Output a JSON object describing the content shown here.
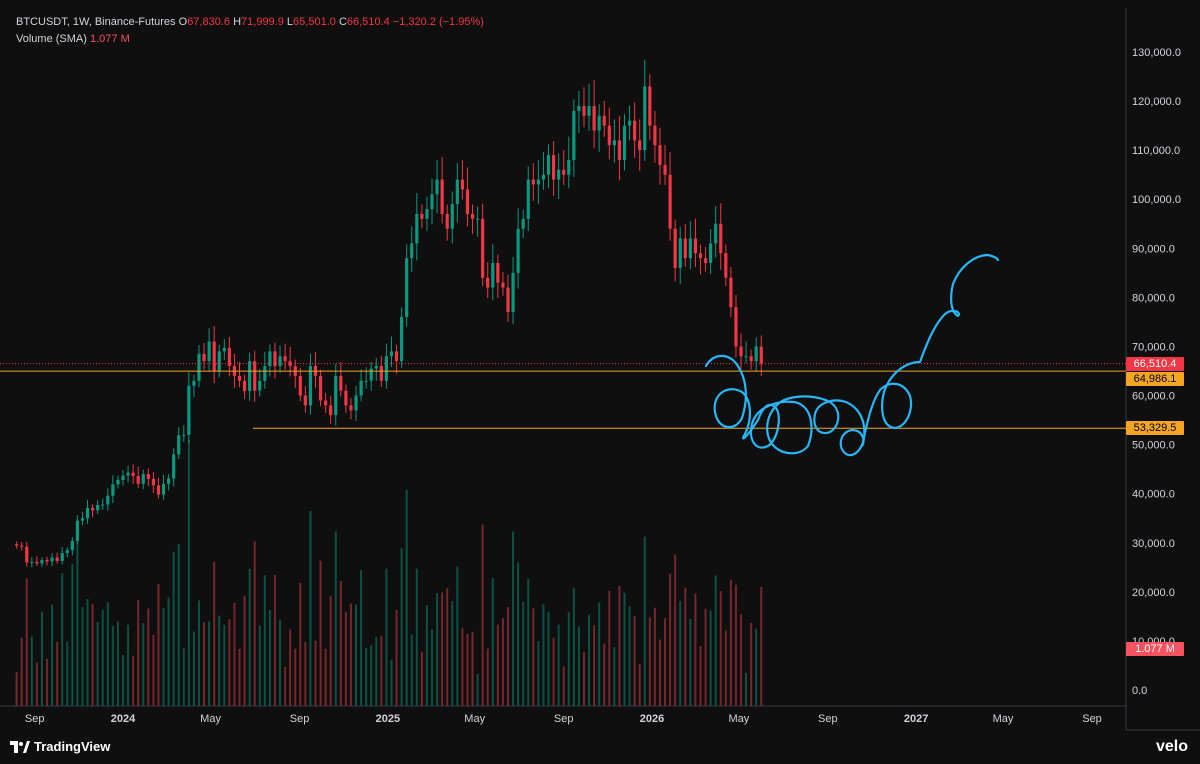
{
  "header": {
    "symbol_line": "BTCUSDT, 1W, Binance-Futures",
    "o_label": "O",
    "o_value": "67,830.6",
    "h_label": "H",
    "h_value": "71,999.9",
    "l_label": "L",
    "l_value": "65,501.0",
    "c_label": "C",
    "c_value": "66,510.4",
    "change": "−1,320.2 (−1.95%)",
    "volume_label": "Volume (SMA)",
    "volume_value": "1.077 M"
  },
  "price_tags": {
    "last": "66,510.4",
    "level_1": "64,986.1",
    "level_2": "53,329.5",
    "volume": "1.077 M"
  },
  "colors": {
    "background": "#0f0f0f",
    "up": "#089981",
    "down": "#f23645",
    "level_line": "#f5a524",
    "drawing": "#29b6f6",
    "last_price_tag": "#f23645",
    "volume_tag": "#f7525f"
  },
  "footer": {
    "brand": "TradingView",
    "watermark": "velo"
  },
  "chart_data": {
    "type": "candlestick",
    "title": "",
    "price_axis": {
      "ticks": [
        0,
        10000,
        20000,
        30000,
        40000,
        50000,
        60000,
        70000,
        80000,
        90000,
        100000,
        110000,
        120000,
        130000
      ],
      "tick_labels": [
        "0.0",
        "10,000.0",
        "20,000.0",
        "30,000.0",
        "40,000.0",
        "50,000.0",
        "60,000.0",
        "70,000.0",
        "80,000.0",
        "90,000.0",
        "100,000.0",
        "110,000.0",
        "120,000.0",
        "130,000.0"
      ]
    },
    "time_axis": {
      "labels": [
        {
          "text": "Sep",
          "date": "2023-09-01"
        },
        {
          "text": "2024",
          "date": "2024-01-01",
          "bold": true
        },
        {
          "text": "May",
          "date": "2024-05-01"
        },
        {
          "text": "Sep",
          "date": "2024-09-01"
        },
        {
          "text": "2025",
          "date": "2025-01-01",
          "bold": true
        },
        {
          "text": "May",
          "date": "2025-05-01"
        },
        {
          "text": "Sep",
          "date": "2025-09-01"
        },
        {
          "text": "2026",
          "date": "2026-01-01",
          "bold": true
        },
        {
          "text": "May",
          "date": "2026-05-01"
        },
        {
          "text": "Sep",
          "date": "2026-09-01"
        },
        {
          "text": "2027",
          "date": "2027-01-01",
          "bold": true
        },
        {
          "text": "May",
          "date": "2027-05-01"
        },
        {
          "text": "Sep",
          "date": "2027-09-01"
        }
      ]
    },
    "candle_interval": "1W",
    "first_candle_date": "2023-08-07",
    "closes": [
      29400,
      29200,
      26000,
      26100,
      25800,
      26500,
      26200,
      27000,
      26300,
      27900,
      28500,
      30400,
      34500,
      35000,
      37100,
      36600,
      37700,
      37800,
      39600,
      41900,
      42800,
      43700,
      44300,
      43600,
      42000,
      44000,
      43000,
      41700,
      39800,
      42000,
      43100,
      48000,
      51900,
      52000,
      62000,
      63000,
      68500,
      67000,
      71000,
      65000,
      69000,
      69700,
      66000,
      64000,
      63000,
      60900,
      67000,
      61000,
      63000,
      66000,
      69000,
      66000,
      68000,
      67000,
      66000,
      64000,
      60000,
      58000,
      66000,
      64000,
      59000,
      58000,
      56000,
      64000,
      61000,
      58000,
      57000,
      60000,
      63000,
      63000,
      65500,
      66000,
      63000,
      68000,
      69000,
      67000,
      76000,
      88000,
      91000,
      97000,
      96000,
      98000,
      101000,
      104000,
      97000,
      94000,
      99000,
      104000,
      102000,
      97000,
      96000,
      96000,
      84000,
      82000,
      87000,
      83000,
      82000,
      77000,
      85000,
      94000,
      96000,
      104000,
      103000,
      104000,
      105000,
      109000,
      104000,
      106000,
      105000,
      108000,
      118000,
      119000,
      117000,
      119000,
      114000,
      117000,
      115000,
      111000,
      112000,
      108000,
      115000,
      116000,
      112000,
      110000,
      123000,
      115000,
      111000,
      107000,
      105000,
      94000,
      86000,
      92000,
      88000,
      92000,
      89000,
      88000,
      87000,
      91000,
      95000,
      89000,
      84000,
      78000,
      70000,
      68000,
      68000,
      67000,
      70000,
      66500
    ],
    "volume_note": "Volume panel shows per-candle volume bars colored by candle direction",
    "levels": [
      {
        "price": 66510.4,
        "label": "66,510.4",
        "style": "dotted",
        "color": "#f23645"
      },
      {
        "price": 64986.1,
        "label": "64,986.1",
        "style": "solid",
        "color": "#f5a524"
      },
      {
        "price": 53329.5,
        "label": "53,329.5",
        "style": "solid",
        "color": "#f5a524"
      }
    ],
    "grid": false,
    "legend": "none"
  }
}
